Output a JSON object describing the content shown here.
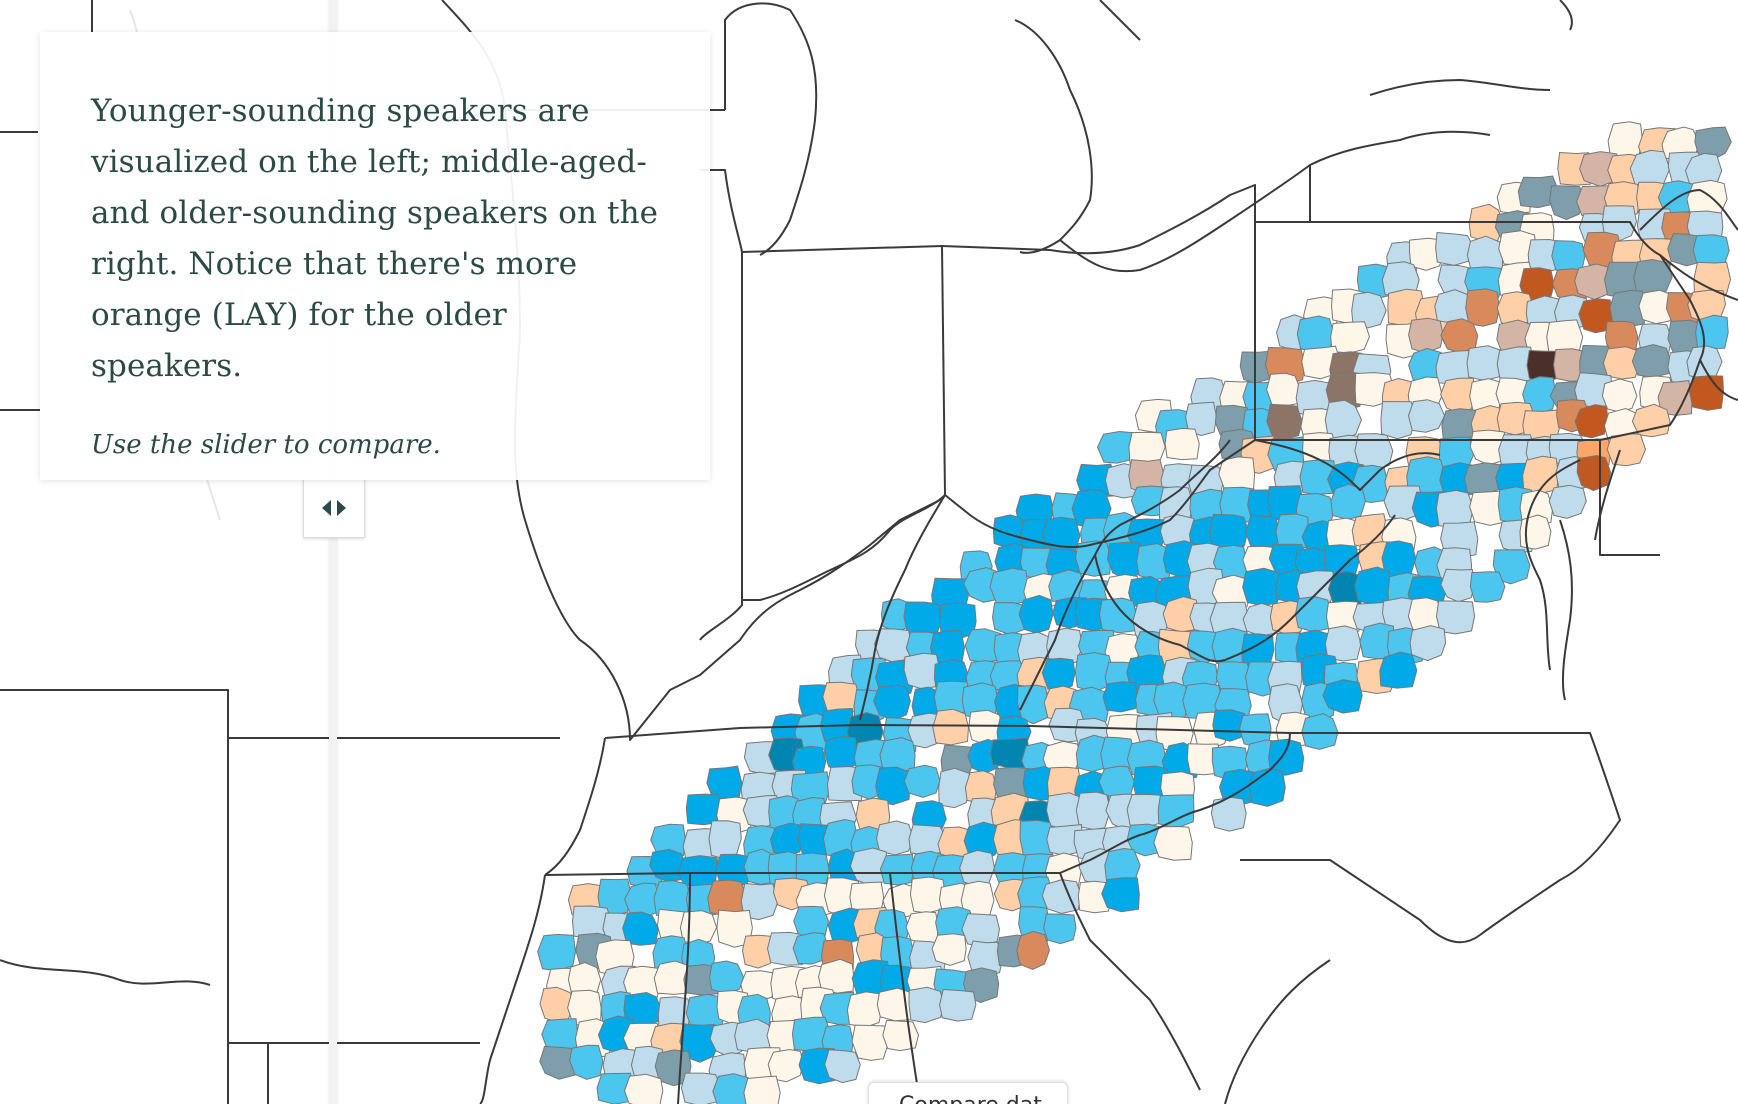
{
  "info_card": {
    "text": "Younger-sounding speakers are visualized on the left; middle-aged- and older-sounding speakers on the right. Notice that there's more orange (LAY) for the older speakers.",
    "hint": "Use the slider to compare."
  },
  "compare_tab": {
    "label": "Compare dat"
  },
  "colors": {
    "background": "#ffffff",
    "outline": "#3a3a3a",
    "blue_dark": "#00a9e8",
    "blue_mid": "#4cc6ee",
    "blue_light": "#bfdcec",
    "neutral": "#fff6ea",
    "orange_light": "#ffd0a8",
    "orange_mid": "#d98a5c",
    "orange_strong": "#c0581f",
    "orange_bright": "#ffa565",
    "grey_blue": "#7e9eab",
    "grey_brown": "#8c7467",
    "dark_brown": "#4a3028",
    "teal_dark": "#0085b0"
  }
}
